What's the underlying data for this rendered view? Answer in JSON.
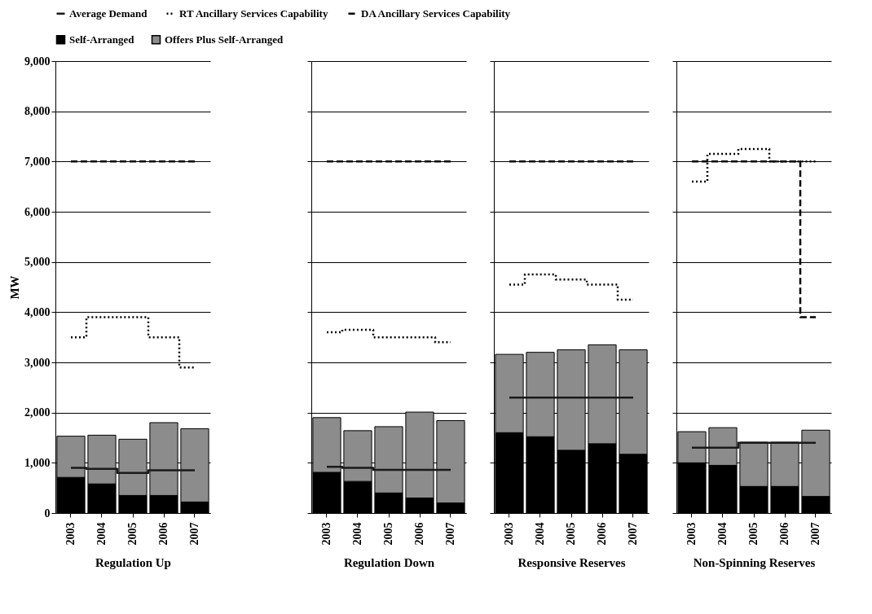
{
  "chart_data": [
    {
      "type": "bar",
      "stacked": true,
      "xlabel": "Regulation Up",
      "ylabel": "MW",
      "categories": [
        "2003",
        "2004",
        "2005",
        "2006",
        "2007"
      ],
      "ylim": [
        0,
        9000
      ],
      "yticks": [
        0,
        {
          "value": 1000,
          "label": "1,000"
        },
        {
          "value": 2000,
          "label": "2,000"
        },
        {
          "value": 3000,
          "label": "3,000"
        },
        {
          "value": 4000,
          "label": "4,000"
        },
        {
          "value": 5000,
          "label": "5,000"
        },
        {
          "value": 6000,
          "label": "6,000"
        },
        {
          "value": 7000,
          "label": "7,000"
        },
        {
          "value": 8000,
          "label": "8,000"
        },
        {
          "value": 9000,
          "label": "9,000"
        }
      ],
      "grid": "y",
      "legend": "top",
      "series": [
        {
          "name": "Self-Arranged",
          "color": "#000000",
          "values": [
            710,
            580,
            350,
            350,
            220
          ]
        },
        {
          "name": "Offers Plus Self-Arranged",
          "color": "#8c8c8c",
          "values": [
            820,
            970,
            1120,
            1450,
            1460
          ]
        },
        {
          "name": "Average Demand",
          "type": "step",
          "line_style": "solid",
          "color": "#1a1a1a",
          "values": [
            900,
            880,
            800,
            850,
            850
          ]
        },
        {
          "name": "RT Ancillary Services Capability",
          "type": "step",
          "line_style": "dotted",
          "color": "#000000",
          "values": [
            3500,
            3900,
            3900,
            3500,
            2900
          ]
        },
        {
          "name": "DA Ancillary Services Capability",
          "type": "step",
          "line_style": "dashed",
          "color": "#000000",
          "values": [
            7000,
            7000,
            7000,
            7000,
            7000
          ]
        }
      ]
    },
    {
      "type": "bar",
      "stacked": true,
      "xlabel": "Regulation Down",
      "categories": [
        "2003",
        "2004",
        "2005",
        "2006",
        "2007"
      ],
      "ylim": [
        0,
        9000
      ],
      "yticks": [
        {
          "value": 0,
          "label": null
        },
        {
          "value": 1000,
          "label": null
        },
        {
          "value": 2000,
          "label": null
        },
        {
          "value": 3000,
          "label": null
        },
        {
          "value": 4000,
          "label": null
        },
        {
          "value": 5000,
          "label": null
        },
        {
          "value": 6000,
          "label": null
        },
        {
          "value": 7000,
          "label": null
        },
        {
          "value": 8000,
          "label": null
        },
        {
          "value": 9000,
          "label": null
        }
      ],
      "grid": "y",
      "tick_labels": "x",
      "series": [
        {
          "name": "Self-Arranged",
          "color": "#000000",
          "values": [
            810,
            630,
            400,
            300,
            200
          ]
        },
        {
          "name": "Offers Plus Self-Arranged",
          "color": "#8c8c8c",
          "values": [
            1090,
            1010,
            1320,
            1710,
            1640
          ]
        },
        {
          "name": "Average Demand",
          "type": "step",
          "line_style": "solid",
          "color": "#1a1a1a",
          "values": [
            920,
            900,
            860,
            860,
            860
          ]
        },
        {
          "name": "RT Ancillary Services Capability",
          "type": "step",
          "line_style": "dotted",
          "color": "#000000",
          "values": [
            3600,
            3650,
            3500,
            3500,
            3400
          ]
        },
        {
          "name": "DA Ancillary Services Capability",
          "type": "step",
          "line_style": "dashed",
          "color": "#000000",
          "values": [
            7000,
            7000,
            7000,
            7000,
            7000
          ]
        }
      ]
    },
    {
      "type": "bar",
      "stacked": true,
      "xlabel": "Responsive Reserves",
      "categories": [
        "2003",
        "2004",
        "2005",
        "2006",
        "2007"
      ],
      "ylim": [
        0,
        9000
      ],
      "yticks": [
        {
          "value": 0,
          "label": null
        },
        {
          "value": 1000,
          "label": null
        },
        {
          "value": 2000,
          "label": null
        },
        {
          "value": 3000,
          "label": null
        },
        {
          "value": 4000,
          "label": null
        },
        {
          "value": 5000,
          "label": null
        },
        {
          "value": 6000,
          "label": null
        },
        {
          "value": 7000,
          "label": null
        },
        {
          "value": 8000,
          "label": null
        },
        {
          "value": 9000,
          "label": null
        }
      ],
      "grid": "y",
      "tick_labels": "x",
      "series": [
        {
          "name": "Self-Arranged",
          "color": "#000000",
          "values": [
            1600,
            1520,
            1250,
            1380,
            1170
          ]
        },
        {
          "name": "Offers Plus Self-Arranged",
          "color": "#8c8c8c",
          "values": [
            1560,
            1680,
            2000,
            1970,
            2080
          ]
        },
        {
          "name": "Average Demand",
          "type": "step",
          "line_style": "solid",
          "color": "#1a1a1a",
          "values": [
            2300,
            2300,
            2300,
            2300,
            2300
          ]
        },
        {
          "name": "RT Ancillary Services Capability",
          "type": "step",
          "line_style": "dotted",
          "color": "#000000",
          "values": [
            4550,
            4750,
            4650,
            4550,
            4250
          ]
        },
        {
          "name": "DA Ancillary Services Capability",
          "type": "step",
          "line_style": "dashed",
          "color": "#000000",
          "values": [
            7000,
            7000,
            7000,
            7000,
            7000
          ]
        }
      ]
    },
    {
      "type": "bar",
      "stacked": true,
      "xlabel": "Non-Spinning Reserves",
      "categories": [
        "2003",
        "2004",
        "2005",
        "2006",
        "2007"
      ],
      "ylim": [
        0,
        9000
      ],
      "yticks": [
        {
          "value": 0,
          "label": null
        },
        {
          "value": 1000,
          "label": null
        },
        {
          "value": 2000,
          "label": null
        },
        {
          "value": 3000,
          "label": null
        },
        {
          "value": 4000,
          "label": null
        },
        {
          "value": 5000,
          "label": null
        },
        {
          "value": 6000,
          "label": null
        },
        {
          "value": 7000,
          "label": null
        },
        {
          "value": 8000,
          "label": null
        },
        {
          "value": 9000,
          "label": null
        }
      ],
      "grid": "y",
      "tick_labels": "x",
      "series": [
        {
          "name": "Self-Arranged",
          "color": "#000000",
          "values": [
            1000,
            950,
            530,
            530,
            330
          ]
        },
        {
          "name": "Offers Plus Self-Arranged",
          "color": "#8c8c8c",
          "values": [
            620,
            750,
            880,
            880,
            1320
          ]
        },
        {
          "name": "Average Demand",
          "type": "step",
          "line_style": "solid",
          "color": "#1a1a1a",
          "values": [
            1300,
            1300,
            1400,
            1400,
            1400
          ]
        },
        {
          "name": "RT Ancillary Services Capability",
          "type": "step",
          "line_style": "dotted",
          "color": "#000000",
          "values": [
            6600,
            7150,
            7250,
            7000,
            7000
          ]
        },
        {
          "name": "DA Ancillary Services Capability",
          "type": "step",
          "line_style": "dashed",
          "color": "#000000",
          "values": [
            7000,
            7000,
            7000,
            7000,
            3900
          ]
        }
      ]
    }
  ]
}
